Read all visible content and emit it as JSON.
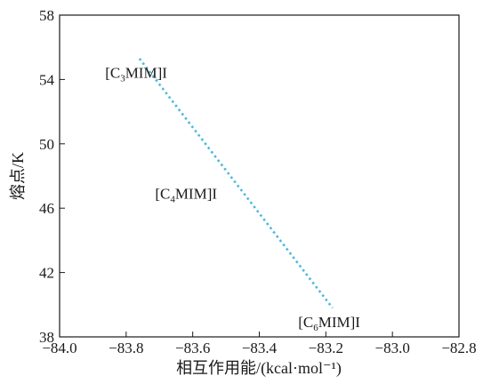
{
  "chart_data": {
    "type": "line",
    "title": "",
    "xlabel": "相互作用能/(kcal·mol⁻¹)",
    "ylabel": "熔点/K",
    "xlim": [
      -84.0,
      -82.8
    ],
    "ylim": [
      38,
      58
    ],
    "xticks": [
      "−84.0",
      "−83.8",
      "−83.6",
      "−83.4",
      "−83.2",
      "−83.0",
      "−82.8"
    ],
    "yticks": [
      "38",
      "42",
      "46",
      "50",
      "54",
      "58"
    ],
    "grid": false,
    "legend": "none",
    "series": [
      {
        "style": "dotted",
        "color": "#4ab8df",
        "x": [
          -83.76,
          -83.18
        ],
        "y": [
          55.3,
          39.8
        ]
      }
    ],
    "annotations": [
      {
        "text": "[C3MIM]I",
        "parts": [
          "[C",
          "3",
          "MIM]I"
        ],
        "x": -83.77,
        "y": 54.1
      },
      {
        "text": "[C4MIM]I",
        "parts": [
          "[C",
          "4",
          "MIM]I"
        ],
        "x": -83.62,
        "y": 46.6
      },
      {
        "text": "[C6MIM]I",
        "parts": [
          "[C",
          "6",
          "MIM]I"
        ],
        "x": -83.19,
        "y": 38.6
      }
    ]
  }
}
